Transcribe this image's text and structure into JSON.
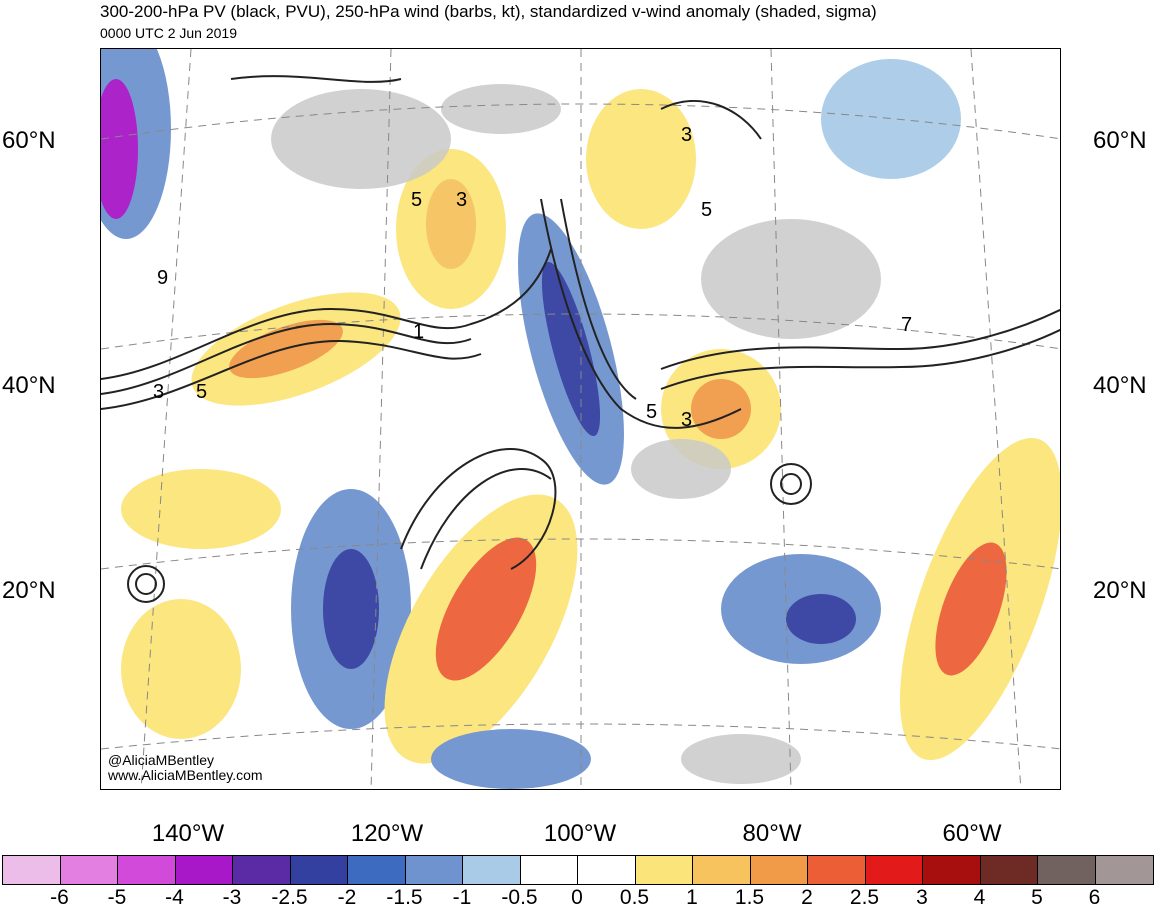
{
  "title": "300-200-hPa PV (black, PVU), 250-hPa wind (barbs, kt), standardized v-wind anomaly (shaded, sigma)",
  "subtitle": "0000 UTC 2 Jun 2019",
  "latitude_labels": [
    "60°N",
    "40°N",
    "20°N"
  ],
  "longitude_labels": [
    "140°W",
    "120°W",
    "100°W",
    "80°W",
    "60°W"
  ],
  "credits": [
    "@AliciaMBentley",
    "www.AliciaMBentley.com"
  ],
  "colorbar": {
    "labels": [
      "-6",
      "-5",
      "-4",
      "-3",
      "-2.5",
      "-2",
      "-1.5",
      "-1",
      "-0.5",
      "0",
      "0.5",
      "1",
      "1.5",
      "2",
      "2.5",
      "3",
      "4",
      "5",
      "6"
    ],
    "colors": [
      "#ebbde8",
      "#e27fe0",
      "#d14ad9",
      "#a818c8",
      "#5b2ba6",
      "#3340a0",
      "#3d6bc0",
      "#6f93cf",
      "#a9cbe8",
      "#ffffff",
      "#ffffff",
      "#fbe57a",
      "#f6c35e",
      "#f19a48",
      "#ec5f36",
      "#e21a1a",
      "#a70f0f",
      "#6e2b26",
      "#72625f",
      "#a39696"
    ]
  },
  "contour_labels": [
    "9",
    "5",
    "3",
    "5",
    "3",
    "1",
    "5",
    "3",
    "7",
    "5",
    "3"
  ]
}
